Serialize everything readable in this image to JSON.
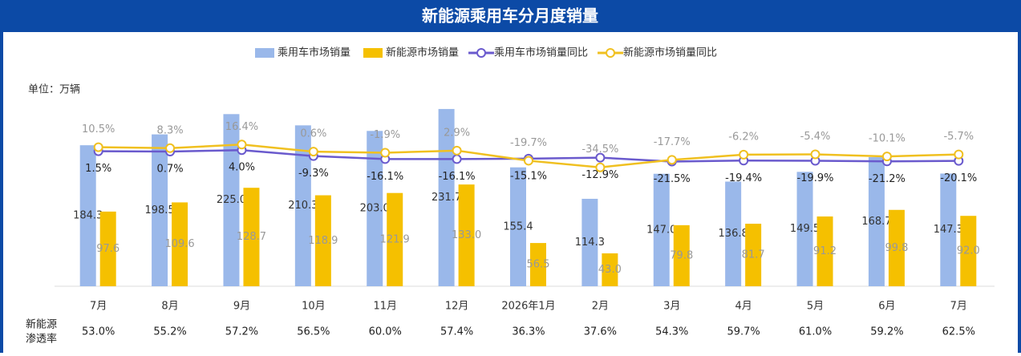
{
  "chart_data": {
    "type": "bar-line",
    "title": "新能源乘用车分月度销量",
    "unit_label": "单位：万辆",
    "categories": [
      "7月",
      "8月",
      "9月",
      "10月",
      "11月",
      "12月",
      "2026年1月",
      "2月",
      "3月",
      "4月",
      "5月",
      "6月",
      "7月"
    ],
    "ylim": [
      0,
      240
    ],
    "y2lim": [
      -300,
      110
    ],
    "series": [
      {
        "name": "乘用车市场销量",
        "type": "bar",
        "color": "#9ab8ea",
        "label_color": "#333333",
        "values": [
          184.3,
          198.5,
          225.0,
          210.3,
          203.0,
          231.7,
          155.4,
          114.3,
          147.0,
          136.8,
          149.5,
          168.7,
          147.3
        ],
        "value_labels": [
          "184.3",
          "198.5",
          "225.0",
          "210.3",
          "203.0",
          "231.7",
          "155.4",
          "114.3",
          "147.0",
          "136.8",
          "149.5",
          "168.7",
          "147.3"
        ]
      },
      {
        "name": "新能源市场销量",
        "type": "bar",
        "color": "#f5c000",
        "label_color": "#999999",
        "values": [
          97.6,
          109.6,
          128.7,
          118.9,
          121.9,
          133.0,
          56.5,
          43.0,
          79.8,
          81.7,
          91.2,
          99.8,
          92.0
        ],
        "value_labels": [
          "97.6",
          "109.6",
          "128.7",
          "118.9",
          "121.9",
          "133.0",
          "56.5",
          "43.0",
          "79.8",
          "81.7",
          "91.2",
          "99.8",
          "92.0"
        ]
      },
      {
        "name": "乘用车市场销量同比",
        "type": "line",
        "axis": "y2",
        "color": "#6a5acd",
        "label_color": "#222222",
        "label_side": "below",
        "values": [
          1.5,
          0.7,
          4.0,
          -9.3,
          -16.1,
          -16.1,
          -15.1,
          -12.9,
          -21.5,
          -19.4,
          -19.9,
          -21.2,
          -20.1
        ],
        "value_labels": [
          "1.5%",
          "0.7%",
          "4.0%",
          "-9.3%",
          "-16.1%",
          "-16.1%",
          "-15.1%",
          "-12.9%",
          "-21.5%",
          "-19.4%",
          "-19.9%",
          "-21.2%",
          "-20.1%"
        ]
      },
      {
        "name": "新能源市场销量同比",
        "type": "line",
        "axis": "y2",
        "color": "#f0c020",
        "label_color": "#999999",
        "label_side": "above",
        "values": [
          10.5,
          8.3,
          16.4,
          0.6,
          -1.9,
          2.9,
          -19.7,
          -34.5,
          -17.7,
          -6.2,
          -5.4,
          -10.1,
          -5.7
        ],
        "value_labels": [
          "10.5%",
          "8.3%",
          "16.4%",
          "0.6%",
          "-1.9%",
          "2.9%",
          "-19.7%",
          "-34.5%",
          "-17.7%",
          "-6.2%",
          "-5.4%",
          "-10.1%",
          "-5.7%"
        ]
      }
    ],
    "penetration": {
      "label": [
        "新能源",
        "渗透率"
      ],
      "values": [
        53.0,
        55.2,
        57.2,
        56.5,
        60.0,
        57.4,
        36.3,
        37.6,
        54.3,
        59.7,
        61.0,
        59.2,
        62.5
      ],
      "value_labels": [
        "53.0%",
        "55.2%",
        "57.2%",
        "56.5%",
        "60.0%",
        "57.4%",
        "36.3%",
        "37.6%",
        "54.3%",
        "59.7%",
        "61.0%",
        "59.2%",
        "62.5%"
      ]
    }
  }
}
